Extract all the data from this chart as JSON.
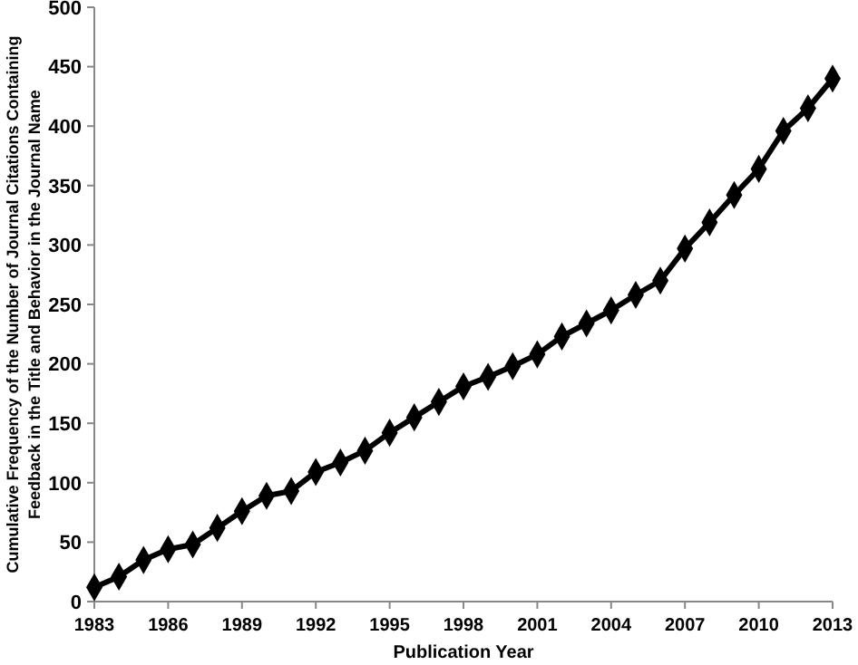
{
  "chart_data": {
    "type": "line",
    "xlabel": "Publication Year",
    "ylabel": "Cumulative Frequency of the Number of Journal Citations Containing\nFeedback in the Title and Behavior in the Journal Name",
    "x": [
      1983,
      1984,
      1985,
      1986,
      1987,
      1988,
      1989,
      1990,
      1991,
      1992,
      1993,
      1994,
      1995,
      1996,
      1997,
      1998,
      1999,
      2000,
      2001,
      2002,
      2003,
      2004,
      2005,
      2006,
      2007,
      2008,
      2009,
      2010,
      2011,
      2012,
      2013
    ],
    "series": [
      {
        "color": "#000000",
        "values": [
          12,
          21,
          35,
          44,
          48,
          62,
          76,
          89,
          93,
          109,
          117,
          127,
          142,
          155,
          168,
          181,
          189,
          198,
          208,
          223,
          234,
          245,
          258,
          270,
          297,
          319,
          342,
          364,
          396,
          415,
          440
        ]
      }
    ],
    "xlim": [
      1983,
      2013
    ],
    "xticks": [
      1983,
      1986,
      1989,
      1992,
      1995,
      1998,
      2001,
      2004,
      2007,
      2010,
      2013
    ],
    "ylim": [
      0,
      500
    ],
    "yticks": [
      0,
      50,
      100,
      150,
      200,
      250,
      300,
      350,
      400,
      450,
      500
    ],
    "marker": "diamond",
    "line_style": "solid"
  }
}
